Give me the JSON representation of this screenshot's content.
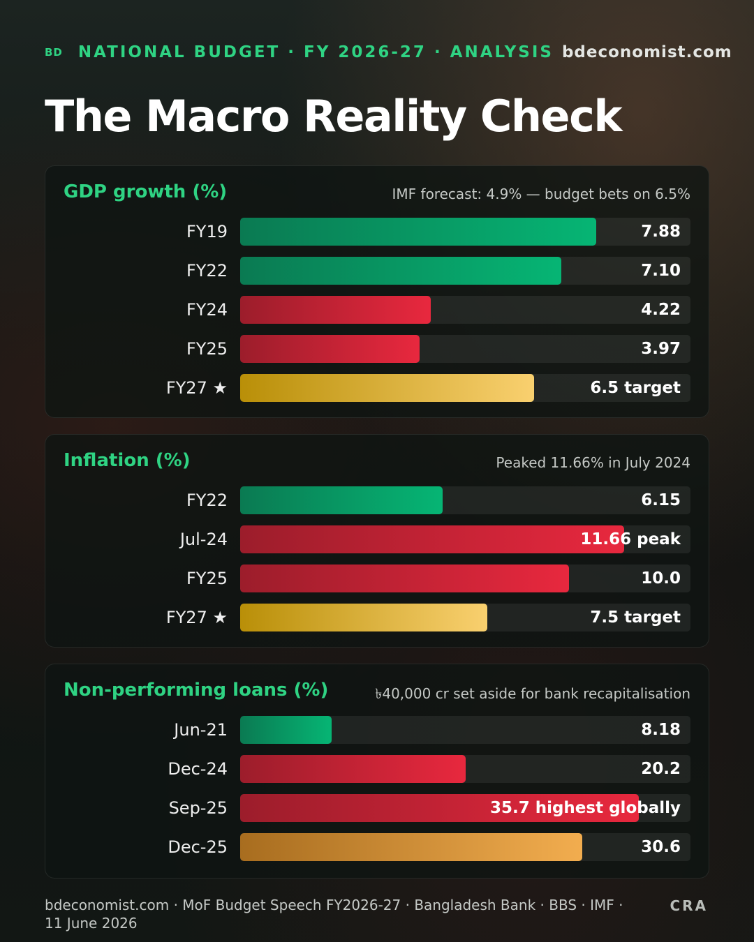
{
  "header": {
    "logo": "BD",
    "kicker": "NATIONAL BUDGET · FY 2026-27 · ANALYSIS",
    "site": "bdeconomist.com"
  },
  "title": "The Macro Reality Check",
  "chart_data": [
    {
      "type": "bar",
      "orientation": "horizontal",
      "title": "GDP growth (%)",
      "note": "IMF forecast: 4.9% — budget bets on 6.5%",
      "xlim": [
        0,
        9.96
      ],
      "categories": [
        "FY19",
        "FY22",
        "FY24",
        "FY25",
        "FY27 ★"
      ],
      "values": [
        7.88,
        7.1,
        4.22,
        3.97,
        6.5
      ],
      "value_labels": [
        "7.88",
        "7.10",
        "4.22",
        "3.97",
        "6.5 target"
      ],
      "colors": [
        "green",
        "green",
        "red",
        "red",
        "gold"
      ]
    },
    {
      "type": "bar",
      "orientation": "horizontal",
      "title": "Inflation (%)",
      "note": "Peaked 11.66% in July 2024",
      "xlim": [
        0,
        13.68
      ],
      "categories": [
        "FY22",
        "Jul-24",
        "FY25",
        "FY27 ★"
      ],
      "values": [
        6.15,
        11.66,
        10.0,
        7.5
      ],
      "value_labels": [
        "6.15",
        "11.66 peak",
        "10.0",
        "7.5 target"
      ],
      "colors": [
        "green",
        "red",
        "red",
        "gold"
      ]
    },
    {
      "type": "bar",
      "orientation": "horizontal",
      "title": "Non-performing loans (%)",
      "note": "৳40,000 cr set aside for bank recapitalisation",
      "xlim": [
        0,
        40.3
      ],
      "categories": [
        "Jun-21",
        "Dec-24",
        "Sep-25",
        "Dec-25"
      ],
      "values": [
        8.18,
        20.2,
        35.7,
        30.6
      ],
      "value_labels": [
        "8.18",
        "20.2",
        "35.7 highest globally",
        "30.6"
      ],
      "colors": [
        "green",
        "red",
        "red",
        "orange"
      ]
    }
  ],
  "footer": {
    "sources": "bdeconomist.com · MoF Budget Speech FY2026-27 · Bangladesh Bank · BBS · IMF · 11 June 2026",
    "credit": "CRA"
  }
}
